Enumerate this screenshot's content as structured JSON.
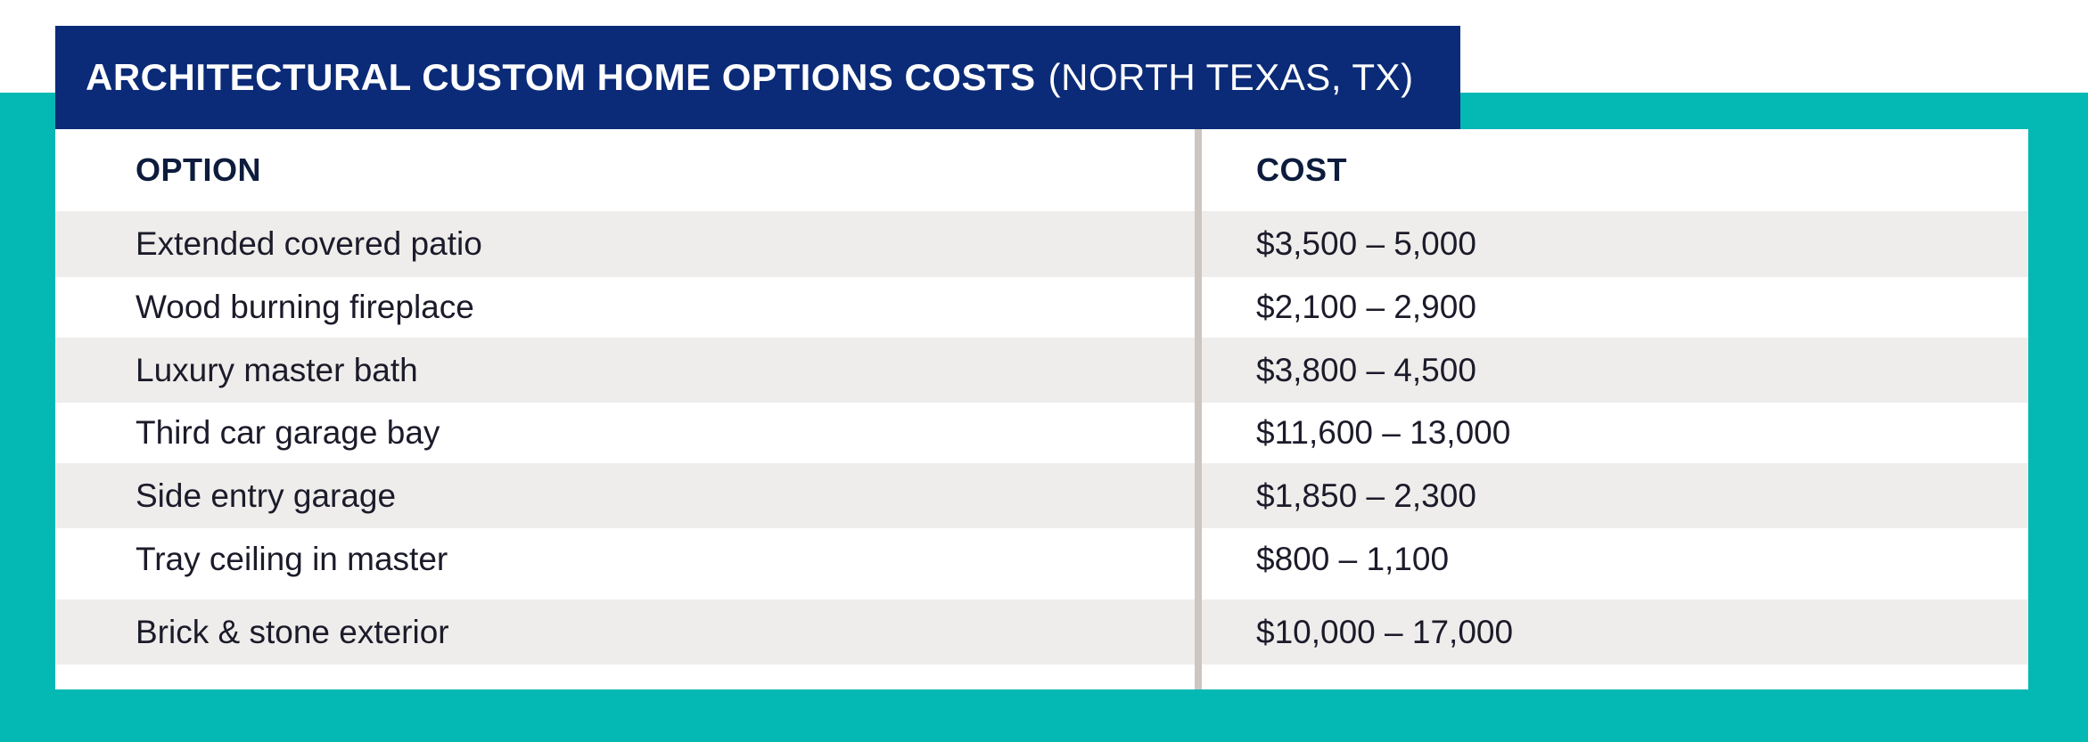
{
  "title": {
    "main": "ARCHITECTURAL CUSTOM HOME OPTIONS COSTS",
    "sub": "(NORTH TEXAS, TX)"
  },
  "table": {
    "headers": [
      "OPTION",
      "COST"
    ],
    "rows": [
      [
        "Extended covered patio",
        "$3,500 – 5,000"
      ],
      [
        "Wood burning fireplace",
        "$2,100 – 2,900"
      ],
      [
        "Luxury master bath",
        "$3,800 – 4,500"
      ],
      [
        "Third car garage bay",
        "$11,600 – 13,000"
      ],
      [
        "Side entry garage",
        "$1,850 – 2,300"
      ],
      [
        "Tray ceiling in master",
        "$800 – 1,100"
      ],
      [
        "Brick & stone exterior",
        "$10,000 – 17,000"
      ]
    ]
  },
  "colors": {
    "teal": "#04b8b4",
    "navy": "#0b2b78",
    "row_shade": "#efedeb",
    "divider": "#cdc6c0"
  }
}
